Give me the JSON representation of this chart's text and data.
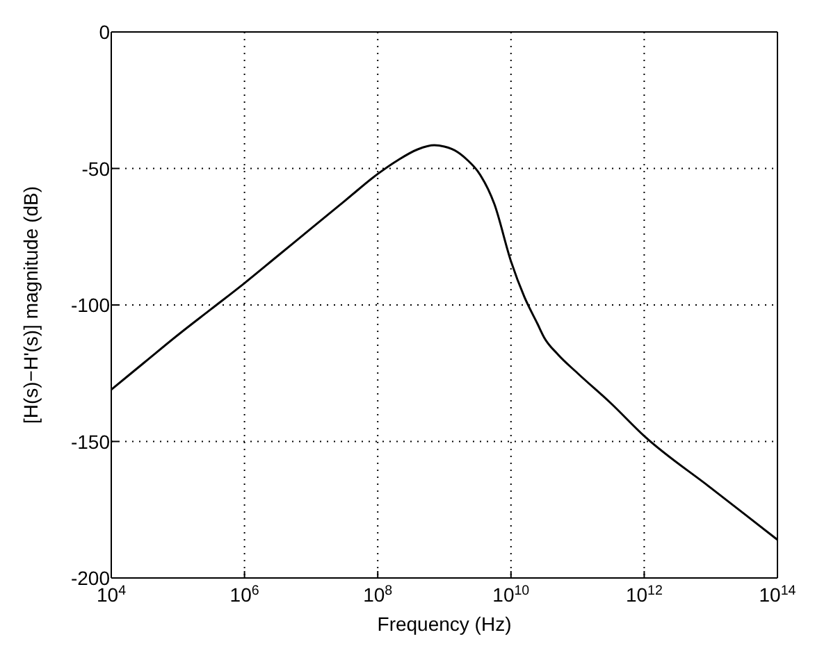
{
  "chart_data": {
    "type": "line",
    "xlabel": "Frequency (Hz)",
    "ylabel": "[H(s)−H'(s)] magnitude (dB)",
    "log": "x",
    "grid": true,
    "marker": "none",
    "line_style": "solid",
    "xlim": [
      10000,
      100000000000000
    ],
    "ylim": [
      -200,
      0
    ],
    "xticks": [
      {
        "value": 10000,
        "label": "10$^{4}$"
      },
      {
        "value": 1000000,
        "label": "10$^{6}$"
      },
      {
        "value": 100000000,
        "label": "10$^{8}$"
      },
      {
        "value": 10000000000,
        "label": "10$^{10}$"
      },
      {
        "value": 1000000000000,
        "label": "10$^{12}$"
      },
      {
        "value": 100000000000000,
        "label": "10$^{14}$"
      }
    ],
    "yticks": [
      -200,
      -150,
      -100,
      -50,
      0
    ],
    "x": [
      10000,
      31623,
      100000,
      316228,
      1000000,
      3162278,
      10000000,
      31622777,
      100000000,
      199526231,
      398107171,
      707945784,
      1000000000,
      1584893192,
      2238721139,
      3162277660,
      5623413252,
      10000000000,
      15848931925,
      25118864315,
      31622776602,
      50118723363,
      100000000000,
      316227766017,
      1000000000000,
      10000000000000,
      100000000000000
    ],
    "series": [
      {
        "color": "#000000",
        "values": [
          -131,
          -121,
          -111,
          -101.5,
          -92,
          -82,
          -72,
          -62,
          -52,
          -47,
          -43,
          -41.5,
          -42,
          -44,
          -47,
          -51,
          -63,
          -84,
          -97,
          -107,
          -112,
          -118,
          -125,
          -136,
          -148,
          -167,
          -186
        ]
      }
    ]
  }
}
